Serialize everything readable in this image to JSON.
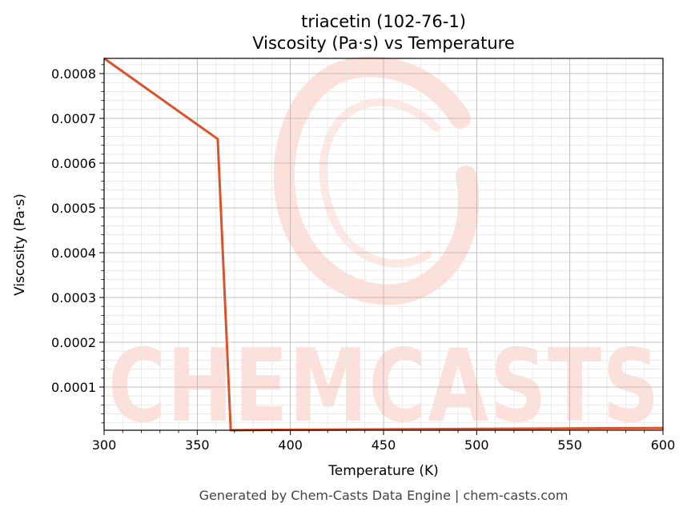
{
  "chart_data": {
    "type": "line",
    "title": "triacetin (102-76-1)",
    "subtitle": "Viscosity (Pa·s) vs Temperature",
    "xlabel": "Temperature (K)",
    "ylabel": "Viscosity (Pa·s)",
    "xlim": [
      300,
      600
    ],
    "ylim": [
      3.5e-06,
      0.000834
    ],
    "xticks": [
      "300",
      "350",
      "400",
      "450",
      "500",
      "550",
      "600"
    ],
    "yticks": [
      "0.0001",
      "0.0002",
      "0.0003",
      "0.0004",
      "0.0005",
      "0.0006",
      "0.0007",
      "0.0008"
    ],
    "grid": true,
    "series": [
      {
        "color": "#d9532b",
        "x": [
          300,
          361,
          368,
          400,
          600
        ],
        "y": [
          0.000834,
          0.000654,
          3.5e-06,
          4.5e-06,
          8.5e-06
        ]
      }
    ]
  },
  "watermark": "CHEMCASTS",
  "footer": "Generated by Chem-Casts Data Engine | chem-casts.com",
  "colors": {
    "line": "#d9532b",
    "watermark": "#fde0da",
    "grid_major": "#b0b0b0",
    "grid_minor": "#e6e6e6"
  }
}
